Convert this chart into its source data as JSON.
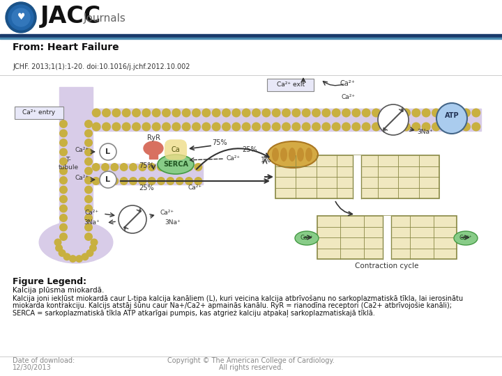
{
  "header_logo_text": "JACC",
  "header_sub_text": "Journals",
  "from_text": "From: Heart Failure",
  "doi_text": "JCHF. 2013;1(1):1-20. doi:10.1016/j.jchf.2012.10.002",
  "figure_legend_title": "Figure Legend:",
  "legend_line1": "Kalcija plūsma miokardā.",
  "legend_line2": "Kalcija joni iekļūst miokardā caur L-tipa kalcija kanāliem (L), kuri veicina kalcija atbrīvošanu no sarkoplazmatiskā tīkla, lai ierosinātu",
  "legend_line3": "miokarda kontrakciju. Kalcijs atstāj šūnu caur Na+/Ca2+ apmainās kanālu. RyR = rianodīna receptori (Ca2+ atbrīvojošie kanāli);",
  "legend_line4": "SERCA = sarkoplazmatiskā tīkla ATP atkarīgai pumpis, kas atgrież kalciju atpakaļ sarkoplazmatiskajā tīklā.",
  "footer_left_line1": "Date of download:",
  "footer_left_line2": "12/30/2013",
  "footer_right_line1": "Copyright © The American College of Cardiology.",
  "footer_right_line2": "All rights reserved.",
  "bg_color": "#ffffff",
  "text_color": "#000000",
  "gray_text_color": "#888888",
  "header_dark_line": "#1a3a6b",
  "header_light_line": "#4a90c4",
  "separator_color": "#cccccc",
  "mem_outer_color": "#d4c8e0",
  "mem_bead_color": "#c8b040",
  "mem_inner_color": "#c8a8d0",
  "sr_color": "#e8d898",
  "sr_border_color": "#888844",
  "mito_color": "#d4aa44",
  "serca_color": "#88cc88",
  "l_channel_color": "#cc8888",
  "ryr_color": "#cc6655",
  "atp_color": "#88aad4",
  "arrow_color": "#333333",
  "label_box_color": "#e8e8f8"
}
